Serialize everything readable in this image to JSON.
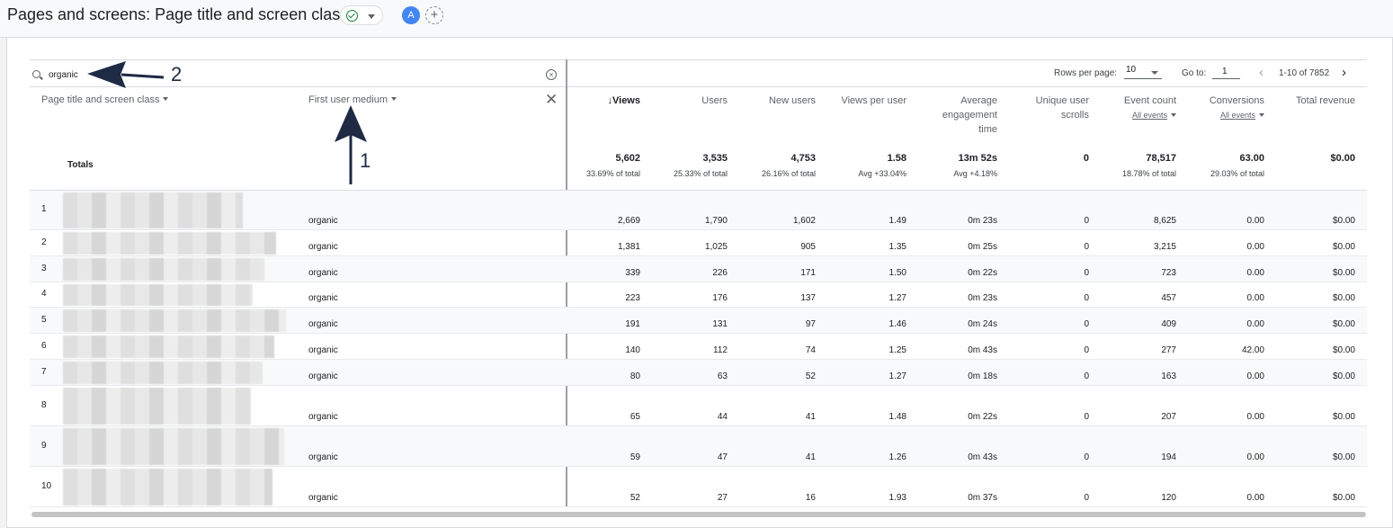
{
  "header": {
    "title": "Pages and screens: Page title and screen class",
    "avatar_letter": "A",
    "add_symbol": "+"
  },
  "toolbar": {
    "search_value": "organic",
    "rows_per_page_label": "Rows per page:",
    "rows_per_page_value": "10",
    "goto_label": "Go to:",
    "goto_value": "1",
    "page_range": "1-10 of 7852",
    "prev_symbol": "‹",
    "next_symbol": "›",
    "clear_symbol": "×"
  },
  "table": {
    "dimensions": [
      "Page title and screen class",
      "First user medium"
    ],
    "remove_symbol": "✕",
    "metrics": [
      {
        "label": "Views",
        "sorted": true,
        "total": "5,602",
        "total_sub": "33.69% of total"
      },
      {
        "label": "Users",
        "total": "3,535",
        "total_sub": "25.33% of total"
      },
      {
        "label": "New users",
        "total": "4,753",
        "total_sub": "26.16% of total"
      },
      {
        "label": "Views per user",
        "total": "1.58",
        "total_sub": "Avg +33.04%"
      },
      {
        "label": "Average engagement time",
        "total": "13m 52s",
        "total_sub": "Avg +4.18%"
      },
      {
        "label": "Unique user scrolls",
        "total": "0",
        "total_sub": ""
      },
      {
        "label": "Event count",
        "sub_selector": "All events",
        "total": "78,517",
        "total_sub": "18.78% of total"
      },
      {
        "label": "Conversions",
        "sub_selector": "All events",
        "total": "63.00",
        "total_sub": "29.03% of total"
      },
      {
        "label": "Total revenue",
        "total": "$0.00",
        "total_sub": ""
      }
    ],
    "totals_label": "Totals",
    "rows": [
      {
        "idx": "1",
        "medium": "organic",
        "vals": [
          "2,669",
          "1,790",
          "1,602",
          "1.49",
          "0m 23s",
          "0",
          "8,625",
          "0.00",
          "$0.00"
        ]
      },
      {
        "idx": "2",
        "medium": "organic",
        "vals": [
          "1,381",
          "1,025",
          "905",
          "1.35",
          "0m 25s",
          "0",
          "3,215",
          "0.00",
          "$0.00"
        ]
      },
      {
        "idx": "3",
        "medium": "organic",
        "vals": [
          "339",
          "226",
          "171",
          "1.50",
          "0m 22s",
          "0",
          "723",
          "0.00",
          "$0.00"
        ]
      },
      {
        "idx": "4",
        "medium": "organic",
        "vals": [
          "223",
          "176",
          "137",
          "1.27",
          "0m 23s",
          "0",
          "457",
          "0.00",
          "$0.00"
        ]
      },
      {
        "idx": "5",
        "medium": "organic",
        "vals": [
          "191",
          "131",
          "97",
          "1.46",
          "0m 24s",
          "0",
          "409",
          "0.00",
          "$0.00"
        ]
      },
      {
        "idx": "6",
        "medium": "organic",
        "vals": [
          "140",
          "112",
          "74",
          "1.25",
          "0m 43s",
          "0",
          "277",
          "42.00",
          "$0.00"
        ]
      },
      {
        "idx": "7",
        "medium": "organic",
        "vals": [
          "80",
          "63",
          "52",
          "1.27",
          "0m 18s",
          "0",
          "163",
          "0.00",
          "$0.00"
        ]
      },
      {
        "idx": "8",
        "medium": "organic",
        "vals": [
          "65",
          "44",
          "41",
          "1.48",
          "0m 22s",
          "0",
          "207",
          "0.00",
          "$0.00"
        ]
      },
      {
        "idx": "9",
        "medium": "organic",
        "vals": [
          "59",
          "47",
          "41",
          "1.26",
          "0m 43s",
          "0",
          "194",
          "0.00",
          "$0.00"
        ]
      },
      {
        "idx": "10",
        "medium": "organic",
        "vals": [
          "52",
          "27",
          "16",
          "1.93",
          "0m 37s",
          "0",
          "120",
          "0.00",
          "$0.00"
        ]
      }
    ]
  },
  "annotations": {
    "one": "1",
    "two": "2"
  },
  "colors": {
    "accent": "#4285f4",
    "success": "#188038",
    "annotation_arrow": "#1f2a44"
  }
}
